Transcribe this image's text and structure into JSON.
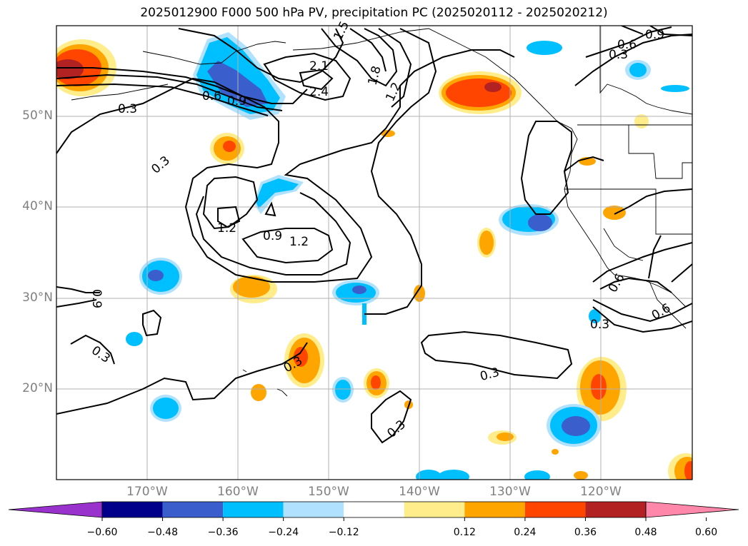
{
  "title": "2025012900 F000 500 hPa PV, precipitation PC (2025020112 - 2025020212)",
  "map": {
    "lat_labels": [
      "50°N",
      "40°N",
      "30°N",
      "20°N"
    ],
    "lon_labels": [
      "170°W",
      "160°W",
      "150°W",
      "140°W",
      "130°W",
      "120°W"
    ],
    "contour_labels": [
      "1.5",
      "2.1",
      "2.4",
      "1.8",
      "1.2",
      "0.6",
      "0.9",
      "0.3",
      "0.9",
      "0.6",
      "0.3",
      "0.3",
      "1.2",
      "0.9",
      "1.2",
      "0.9",
      "0.3",
      "0.3",
      "0.3",
      "0.3",
      "0.6",
      "0.6",
      "0.3"
    ]
  },
  "colorbar": {
    "ticks": [
      "−0.60",
      "−0.48",
      "−0.36",
      "−0.24",
      "−0.12",
      "0.12",
      "0.24",
      "0.36",
      "0.48",
      "0.60"
    ],
    "colors": [
      "#9932cc",
      "#00008b",
      "#3a5fcd",
      "#00bfff",
      "#b0e2ff",
      "#ffffff",
      "#ffec8b",
      "#ffa500",
      "#ff4500",
      "#b22222",
      "#ff88aa"
    ]
  }
}
